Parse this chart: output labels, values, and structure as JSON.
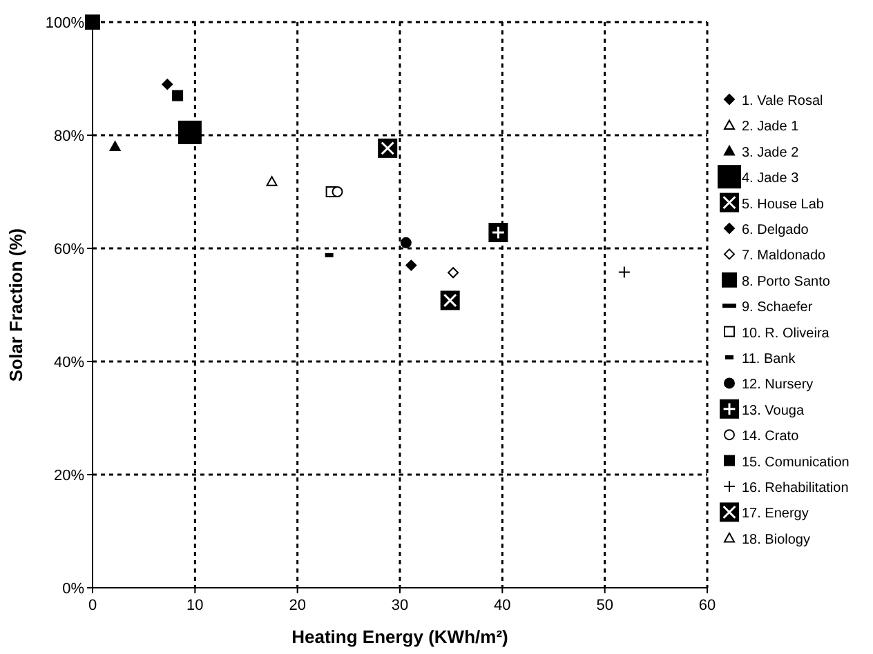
{
  "chart_data": {
    "type": "scatter",
    "xlabel": "Heating Energy (KWh/m²)",
    "ylabel": "Solar Fraction (%)",
    "xlim": [
      0,
      60
    ],
    "ylim": [
      0,
      100
    ],
    "xticks": [
      0,
      10,
      20,
      30,
      40,
      50,
      60
    ],
    "yticks": [
      {
        "value": 0,
        "label": "0%"
      },
      {
        "value": 20,
        "label": "20%"
      },
      {
        "value": 40,
        "label": "40%"
      },
      {
        "value": 60,
        "label": "60%"
      },
      {
        "value": 80,
        "label": "80%"
      },
      {
        "value": 100,
        "label": "100%"
      }
    ],
    "grid": true,
    "legend": "right",
    "series": [
      {
        "name": "1. Vale Rosal",
        "color": "#000000",
        "marker": "diamond",
        "x": [
          7.3
        ],
        "values": [
          89
        ]
      },
      {
        "name": "2. Jade 1",
        "color": "#000000",
        "marker": "triangle"
      },
      {
        "name": "3. Jade 2",
        "color": "#000000",
        "marker": "triangle",
        "x": [
          2.2
        ],
        "values": [
          78
        ]
      },
      {
        "name": "4. Jade 3",
        "color": "#000000",
        "marker": "square",
        "x": [
          9.5
        ],
        "values": [
          80.5
        ]
      },
      {
        "name": "5. House Lab",
        "color": "#000000",
        "marker": "square",
        "x": [
          28.8
        ],
        "values": [
          77.7
        ]
      },
      {
        "name": "6. Delgado",
        "color": "#000000",
        "marker": "diamond",
        "x": [
          31.1
        ],
        "values": [
          57
        ]
      },
      {
        "name": "7. Maldonado",
        "color": "#000000",
        "marker": "diamond",
        "x": [
          35.2
        ],
        "values": [
          55.7
        ]
      },
      {
        "name": "8. Porto Santo",
        "color": "#000000",
        "marker": "square",
        "x": [
          0
        ],
        "values": [
          100
        ]
      },
      {
        "name": "9. Schaefer",
        "color": "#000000",
        "marker": "none"
      },
      {
        "name": "10. R. Oliveira",
        "color": "#000000",
        "marker": "square",
        "x": [
          23.3
        ],
        "values": [
          70
        ]
      },
      {
        "name": "11. Bank",
        "color": "#000000",
        "marker": "square",
        "x": [
          23.1
        ],
        "values": [
          58.8
        ]
      },
      {
        "name": "12. Nursery",
        "color": "#000000",
        "marker": "circle",
        "x": [
          30.6
        ],
        "values": [
          61
        ]
      },
      {
        "name": "13. Vouga",
        "color": "#000000",
        "marker": "square",
        "x": [
          39.6
        ],
        "values": [
          62.8
        ]
      },
      {
        "name": "14. Crato",
        "color": "#000000",
        "marker": "circle",
        "x": [
          23.9
        ],
        "values": [
          70
        ]
      },
      {
        "name": "15. Comunication",
        "color": "#000000",
        "marker": "square",
        "x": [
          8.3
        ],
        "values": [
          87
        ]
      },
      {
        "name": "16. Rehabilitation",
        "color": "#000000",
        "marker": "cross",
        "x": [
          51.9
        ],
        "values": [
          55.8
        ]
      },
      {
        "name": "17. Energy",
        "color": "#000000",
        "marker": "square",
        "x": [
          34.9
        ],
        "values": [
          50.8
        ]
      },
      {
        "name": "18. Biology",
        "color": "#000000",
        "marker": "triangle",
        "x": [
          17.5
        ],
        "values": [
          71.8
        ]
      }
    ]
  }
}
